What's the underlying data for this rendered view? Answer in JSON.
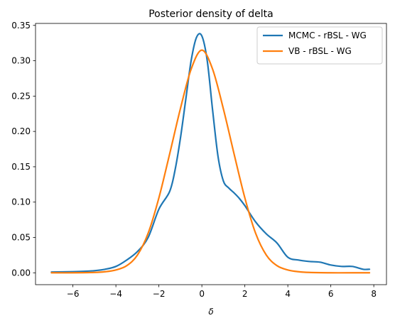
{
  "chart_data": {
    "type": "line",
    "title": "Posterior density of delta",
    "xlabel": "δ",
    "ylabel": "",
    "xlim": [
      -7.74,
      8.59
    ],
    "ylim": [
      -0.0168,
      0.3528
    ],
    "xticks": [
      -6,
      -4,
      -2,
      0,
      2,
      4,
      6,
      8
    ],
    "xtick_labels": [
      "−6",
      "−4",
      "−2",
      "0",
      "2",
      "4",
      "6",
      "8"
    ],
    "yticks": [
      0.0,
      0.05,
      0.1,
      0.15,
      0.2,
      0.25,
      0.3,
      0.35
    ],
    "ytick_labels": [
      "0.00",
      "0.05",
      "0.10",
      "0.15",
      "0.20",
      "0.25",
      "0.30",
      "0.35"
    ],
    "grid": false,
    "legend": "top-right",
    "series": [
      {
        "name": "MCMC - rBSL - WG",
        "color": "#1f77b4",
        "x": [
          -7,
          -6,
          -5.5,
          -5,
          -4.5,
          -4,
          -3.5,
          -3,
          -2.5,
          -2,
          -1.5,
          -1.25,
          -1,
          -0.75,
          -0.5,
          -0.25,
          0,
          0.25,
          0.5,
          0.75,
          1,
          1.25,
          1.5,
          1.75,
          2,
          2.5,
          3,
          3.5,
          4,
          4.5,
          5,
          5.5,
          6,
          6.5,
          7,
          7.5,
          7.8
        ],
        "y": [
          0.001,
          0.0015,
          0.002,
          0.003,
          0.005,
          0.009,
          0.018,
          0.03,
          0.05,
          0.09,
          0.115,
          0.145,
          0.19,
          0.245,
          0.3,
          0.333,
          0.335,
          0.3,
          0.23,
          0.165,
          0.13,
          0.12,
          0.113,
          0.105,
          0.095,
          0.072,
          0.055,
          0.042,
          0.022,
          0.018,
          0.016,
          0.015,
          0.011,
          0.009,
          0.009,
          0.005,
          0.005
        ]
      },
      {
        "name": "VB - rBSL - WG",
        "color": "#ff7f0e",
        "x": [
          -7,
          -6,
          -5,
          -4.5,
          -4,
          -3.5,
          -3,
          -2.5,
          -2,
          -1.5,
          -1,
          -0.5,
          0,
          0.5,
          1,
          1.5,
          2,
          2.5,
          3,
          3.5,
          4,
          4.5,
          5,
          6,
          7,
          7.8
        ],
        "y": [
          0.0,
          0.0,
          0.0005,
          0.0015,
          0.004,
          0.01,
          0.025,
          0.056,
          0.106,
          0.168,
          0.232,
          0.288,
          0.315,
          0.288,
          0.232,
          0.168,
          0.106,
          0.056,
          0.025,
          0.01,
          0.004,
          0.0015,
          0.0005,
          0.0,
          0.0,
          0.0
        ]
      }
    ]
  }
}
